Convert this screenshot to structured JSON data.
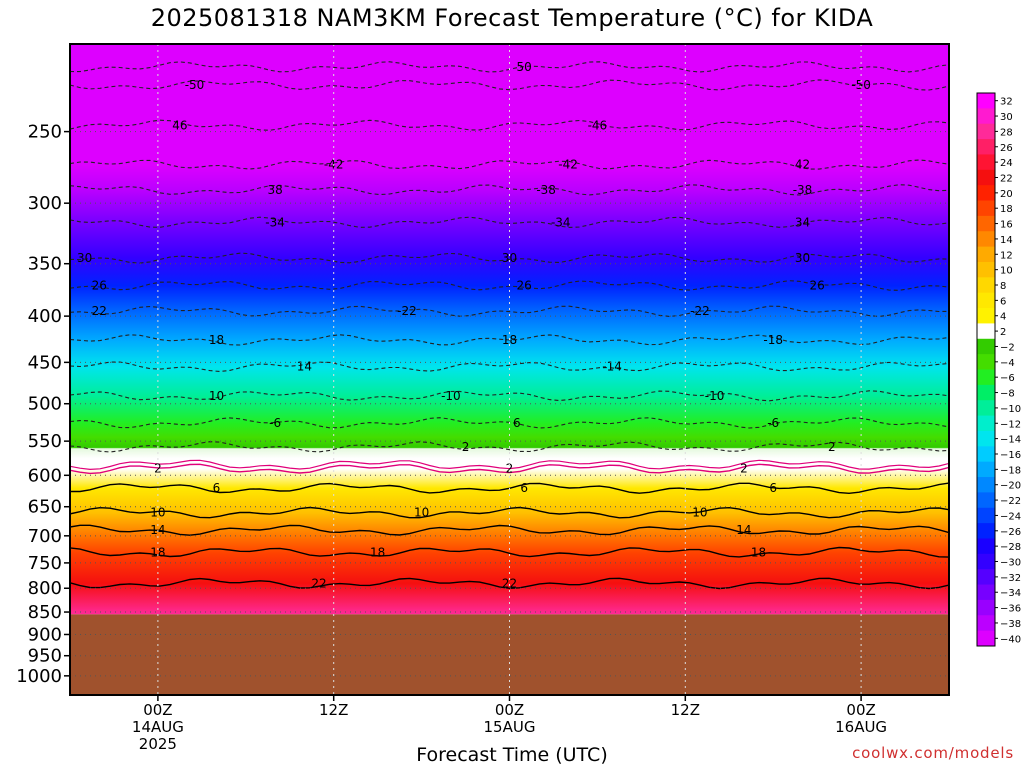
{
  "chart_data": {
    "type": "heatmap",
    "title": "2025081318 NAM3KM Forecast Temperature (°C) for KIDA",
    "xlabel": "Forecast Time (UTC)",
    "ylabel": "",
    "y_scale": "log",
    "ylim": [
      200,
      1050
    ],
    "y_ticks": [
      250,
      300,
      350,
      400,
      450,
      500,
      550,
      600,
      650,
      700,
      750,
      800,
      850,
      900,
      950,
      1000
    ],
    "xlim_hours": [
      -6,
      54
    ],
    "x_ticks": [
      {
        "hour": 0,
        "lines": [
          "00Z",
          "14AUG",
          "2025"
        ]
      },
      {
        "hour": 12,
        "lines": [
          "12Z"
        ]
      },
      {
        "hour": 24,
        "lines": [
          "00Z",
          "15AUG"
        ]
      },
      {
        "hour": 36,
        "lines": [
          "12Z"
        ]
      },
      {
        "hour": 48,
        "lines": [
          "00Z",
          "16AUG"
        ]
      }
    ],
    "surface_pressure_hpa": 855,
    "colorbar": {
      "labels": [
        32,
        30,
        28,
        26,
        24,
        22,
        20,
        18,
        16,
        14,
        12,
        10,
        8,
        6,
        4,
        2,
        -2,
        -4,
        -6,
        -8,
        -10,
        -12,
        -14,
        -16,
        -18,
        -20,
        -22,
        -24,
        -26,
        -28,
        -30,
        -32,
        -34,
        -36,
        -38,
        -40
      ]
    },
    "isotherms": [
      {
        "temp": -50,
        "pressure": 222,
        "labels": [
          {
            "hour": 2.5,
            "text": "-50"
          },
          {
            "hour": 48,
            "text": "-50"
          }
        ]
      },
      {
        "temp": -50,
        "pressure": 212,
        "labels": [
          {
            "hour": 25,
            "text": "50"
          }
        ]
      },
      {
        "temp": -46,
        "pressure": 246,
        "labels": [
          {
            "hour": 1.5,
            "text": "46"
          },
          {
            "hour": 30,
            "text": "-46"
          }
        ]
      },
      {
        "temp": -42,
        "pressure": 272,
        "labels": [
          {
            "hour": 12,
            "text": "-42"
          },
          {
            "hour": 28,
            "text": "-42"
          },
          {
            "hour": 44,
            "text": "42"
          }
        ]
      },
      {
        "temp": -38,
        "pressure": 290,
        "labels": [
          {
            "hour": 8,
            "text": "38"
          },
          {
            "hour": 26.5,
            "text": "-38"
          },
          {
            "hour": 44,
            "text": "-38"
          }
        ]
      },
      {
        "temp": -34,
        "pressure": 315,
        "labels": [
          {
            "hour": 8,
            "text": "-34"
          },
          {
            "hour": 27.5,
            "text": "-34"
          },
          {
            "hour": 44,
            "text": "34"
          }
        ]
      },
      {
        "temp": -30,
        "pressure": 345,
        "labels": [
          {
            "hour": -5,
            "text": "30"
          },
          {
            "hour": 24,
            "text": "30"
          },
          {
            "hour": 44,
            "text": "30"
          }
        ]
      },
      {
        "temp": -26,
        "pressure": 370,
        "labels": [
          {
            "hour": -4,
            "text": "26"
          },
          {
            "hour": 25,
            "text": "26"
          },
          {
            "hour": 45,
            "text": "26"
          }
        ]
      },
      {
        "temp": -22,
        "pressure": 395,
        "labels": [
          {
            "hour": -4,
            "text": "22"
          },
          {
            "hour": 17,
            "text": "-22"
          },
          {
            "hour": 37,
            "text": "-22"
          }
        ]
      },
      {
        "temp": -18,
        "pressure": 425,
        "labels": [
          {
            "hour": 4,
            "text": "18"
          },
          {
            "hour": 24,
            "text": "18"
          },
          {
            "hour": 42,
            "text": "-18"
          }
        ]
      },
      {
        "temp": -14,
        "pressure": 455,
        "labels": [
          {
            "hour": 10,
            "text": "14"
          },
          {
            "hour": 31,
            "text": "-14"
          }
        ]
      },
      {
        "temp": -10,
        "pressure": 490,
        "labels": [
          {
            "hour": 4,
            "text": "10"
          },
          {
            "hour": 20,
            "text": "-10"
          },
          {
            "hour": 38,
            "text": "-10"
          }
        ]
      },
      {
        "temp": -6,
        "pressure": 525,
        "labels": [
          {
            "hour": 8,
            "text": "-6"
          },
          {
            "hour": 24.5,
            "text": "6"
          },
          {
            "hour": 42,
            "text": "-6"
          }
        ]
      },
      {
        "temp": -2,
        "pressure": 558,
        "labels": [
          {
            "hour": 21,
            "text": "2"
          },
          {
            "hour": 46,
            "text": "2"
          }
        ]
      },
      {
        "temp": 2,
        "pressure": 590,
        "labels": [
          {
            "hour": 0,
            "text": "2"
          },
          {
            "hour": 24,
            "text": "2"
          },
          {
            "hour": 40,
            "text": "2"
          }
        ]
      },
      {
        "temp": 6,
        "pressure": 620,
        "labels": [
          {
            "hour": 4,
            "text": "6"
          },
          {
            "hour": 25,
            "text": "6"
          },
          {
            "hour": 42,
            "text": "6"
          }
        ]
      },
      {
        "temp": 10,
        "pressure": 660,
        "labels": [
          {
            "hour": 0,
            "text": "10"
          },
          {
            "hour": 18,
            "text": "10"
          },
          {
            "hour": 37,
            "text": "10"
          }
        ]
      },
      {
        "temp": 14,
        "pressure": 690,
        "labels": [
          {
            "hour": 0,
            "text": "14"
          },
          {
            "hour": 40,
            "text": "14"
          }
        ]
      },
      {
        "temp": 18,
        "pressure": 730,
        "labels": [
          {
            "hour": 0,
            "text": "18"
          },
          {
            "hour": 15,
            "text": "18"
          },
          {
            "hour": 41,
            "text": "18"
          }
        ]
      },
      {
        "temp": 22,
        "pressure": 790,
        "labels": [
          {
            "hour": 11,
            "text": "22"
          },
          {
            "hour": 24,
            "text": "22"
          }
        ]
      }
    ]
  },
  "credit": "coolwx.com/models"
}
